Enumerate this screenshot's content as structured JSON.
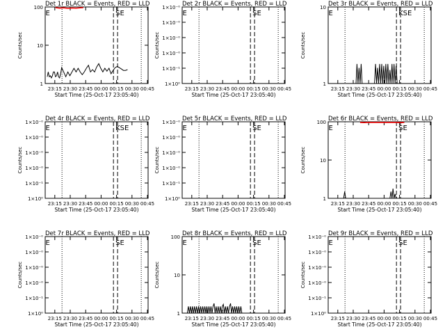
{
  "chart_data": {
    "type": "line",
    "xlabel": "Start Time (25-Oct-17 23:05:40)",
    "ylabel": "Counts/sec",
    "x_ticks": [
      "23:15",
      "23:30",
      "23:45",
      "00:00",
      "00:15",
      "00:30",
      "00:45"
    ],
    "dotted_lines": [
      "23:22",
      "00:39"
    ],
    "dashed_lines": [
      "00:12",
      "00:16"
    ],
    "panels": [
      {
        "title": "Det 1r BLACK = Events, RED = LLD",
        "ylim": [
          1,
          100
        ],
        "y_tick_labels": [
          "1",
          "10",
          "100"
        ],
        "markers": [
          {
            "text": "E",
            "at": "23:06"
          },
          {
            "text": "SE",
            "at": "00:14"
          }
        ],
        "events": [
          [
            2,
            1.5
          ],
          [
            3,
            2
          ],
          [
            4,
            1.5
          ],
          [
            5,
            1.6
          ],
          [
            6,
            1.4
          ],
          [
            7,
            1.6
          ],
          [
            8,
            2
          ],
          [
            9,
            2
          ],
          [
            10,
            1.5
          ],
          [
            11,
            1.6
          ],
          [
            12,
            2
          ],
          [
            13,
            1.5
          ],
          [
            14,
            1.4
          ],
          [
            15,
            1.8
          ],
          [
            16,
            2.6
          ],
          [
            18,
            2
          ],
          [
            20,
            1.5
          ],
          [
            22,
            2
          ],
          [
            24,
            1.6
          ],
          [
            26,
            2
          ],
          [
            28,
            2.5
          ],
          [
            30,
            2
          ],
          [
            32,
            2.5
          ],
          [
            34,
            2
          ],
          [
            36,
            1.7
          ],
          [
            38,
            2
          ],
          [
            40,
            2.5
          ],
          [
            42,
            3
          ],
          [
            44,
            2
          ],
          [
            46,
            2.3
          ],
          [
            48,
            2
          ],
          [
            50,
            2.7
          ],
          [
            52,
            3.3
          ],
          [
            54,
            2.5
          ],
          [
            56,
            2
          ],
          [
            58,
            2.5
          ],
          [
            60,
            2.1
          ],
          [
            62,
            2.5
          ],
          [
            64,
            1.8
          ],
          [
            66,
            2.2
          ],
          [
            68,
            2.6
          ],
          [
            70,
            2.8
          ],
          [
            72,
            2.6
          ],
          [
            74,
            2.4
          ],
          [
            76,
            2.2
          ],
          [
            78,
            2.2
          ],
          [
            80,
            2.3
          ]
        ],
        "lld": [
          [
            10,
            96
          ],
          [
            14,
            93
          ],
          [
            18,
            95
          ],
          [
            22,
            92
          ],
          [
            26,
            94
          ],
          [
            30,
            93
          ],
          [
            34,
            95
          ],
          [
            37,
            96
          ]
        ]
      },
      {
        "title": "Det 2r BLACK = Events, RED = LLD",
        "ylim": [
          1,
          1.000001
        ],
        "y_tick_labels": [
          "1×10⁰",
          "1×10⁻¹",
          "1×10⁻⁰",
          "1×10⁻⁰",
          "1×10⁻⁰",
          "1×10⁻⁰"
        ],
        "markers": [
          {
            "text": "E",
            "at": "23:06"
          },
          {
            "text": "SE",
            "at": "00:14"
          }
        ],
        "events": [],
        "lld": []
      },
      {
        "title": "Det 3r BLACK = Events, RED = LLD",
        "ylim": [
          1,
          10
        ],
        "y_tick_labels": [
          "1",
          "10"
        ],
        "markers": [
          {
            "text": "E",
            "at": "23:06"
          },
          {
            "text": "KSE",
            "at": "00:14"
          }
        ],
        "events": [
          [
            27,
            1
          ],
          [
            28,
            1.8
          ],
          [
            29,
            1
          ],
          [
            30,
            1.6
          ],
          [
            31,
            1
          ],
          [
            32,
            1.8
          ],
          [
            33,
            1
          ],
          [
            45,
            1
          ],
          [
            46,
            1.8
          ],
          [
            47,
            1
          ],
          [
            48,
            1.6
          ],
          [
            49,
            1
          ],
          [
            50,
            1.8
          ],
          [
            51,
            1
          ],
          [
            52,
            1.8
          ],
          [
            53,
            1
          ],
          [
            54,
            1.7
          ],
          [
            55,
            1
          ],
          [
            56,
            1.8
          ],
          [
            57,
            1
          ],
          [
            58,
            1.8
          ],
          [
            59,
            1
          ],
          [
            60,
            1.5
          ],
          [
            61,
            1
          ],
          [
            62,
            1.8
          ],
          [
            63,
            1
          ],
          [
            64,
            1.8
          ],
          [
            65,
            1
          ],
          [
            66,
            1.7
          ],
          [
            67,
            1
          ]
        ],
        "lld": []
      },
      {
        "title": "Det 4r BLACK = Events, RED = LLD",
        "ylim": [
          1,
          1.000001
        ],
        "y_tick_labels": [
          "1×10⁰",
          "1×10⁻¹",
          "1×10⁻⁰",
          "1×10⁻⁰",
          "1×10⁻⁰",
          "1×10⁻⁰"
        ],
        "markers": [
          {
            "text": "E",
            "at": "23:06"
          },
          {
            "text": "KSE",
            "at": "00:14"
          }
        ],
        "events": [],
        "lld": []
      },
      {
        "title": "Det 5r BLACK = Events, RED = LLD",
        "ylim": [
          1,
          1.000001
        ],
        "y_tick_labels": [
          "1×10⁰",
          "1×10⁻¹",
          "1×10⁻⁰",
          "1×10⁻⁰",
          "1×10⁻⁰",
          "1×10⁻⁰"
        ],
        "markers": [
          {
            "text": "E",
            "at": "23:06"
          },
          {
            "text": "SE",
            "at": "00:14"
          }
        ],
        "events": [],
        "lld": []
      },
      {
        "title": "Det 6r BLACK = Events, RED = LLD",
        "ylim": [
          1,
          100
        ],
        "y_tick_labels": [
          "1",
          "10",
          "100"
        ],
        "markers": [
          {
            "text": "E",
            "at": "23:06"
          },
          {
            "text": "SE",
            "at": "00:14"
          }
        ],
        "events": [
          [
            15,
            1
          ],
          [
            16,
            1.5
          ],
          [
            17,
            1
          ],
          [
            60,
            1
          ],
          [
            61,
            1.5
          ],
          [
            62,
            1
          ],
          [
            63,
            1.8
          ],
          [
            64,
            1
          ],
          [
            65,
            1.3
          ],
          [
            66,
            1
          ]
        ],
        "lld": [
          [
            31,
            96
          ],
          [
            35,
            95
          ],
          [
            38,
            96
          ],
          [
            66,
            96
          ],
          [
            70,
            95
          ],
          [
            74,
            96
          ]
        ]
      },
      {
        "title": "Det 7r BLACK = Events, RED = LLD",
        "ylim": [
          1,
          1.000001
        ],
        "y_tick_labels": [
          "1×10⁰",
          "1×10⁻¹",
          "1×10⁻⁰",
          "1×10⁻⁰",
          "1×10⁻⁰",
          "1×10⁻⁰"
        ],
        "markers": [
          {
            "text": "E",
            "at": "23:06"
          },
          {
            "text": "SE",
            "at": "00:14"
          }
        ],
        "events": [],
        "lld": []
      },
      {
        "title": "Det 8r BLACK = Events, RED = LLD",
        "ylim": [
          1,
          100
        ],
        "y_tick_labels": [
          "1",
          "10",
          "100"
        ],
        "markers": [
          {
            "text": "E",
            "at": "23:06"
          },
          {
            "text": "SE",
            "at": "00:14"
          }
        ],
        "events": [
          [
            5,
            1
          ],
          [
            6,
            1.5
          ],
          [
            7,
            1
          ],
          [
            8,
            1.5
          ],
          [
            9,
            1
          ],
          [
            10,
            1.5
          ],
          [
            11,
            1
          ],
          [
            12,
            1.5
          ],
          [
            13,
            1
          ],
          [
            14,
            1.5
          ],
          [
            15,
            1
          ],
          [
            16,
            1.5
          ],
          [
            17,
            1
          ],
          [
            18,
            1.5
          ],
          [
            19,
            1
          ],
          [
            20,
            1.5
          ],
          [
            21,
            1
          ],
          [
            22,
            1.5
          ],
          [
            23,
            1
          ],
          [
            24,
            1.5
          ],
          [
            25,
            1
          ],
          [
            26,
            1.5
          ],
          [
            27,
            1
          ],
          [
            28,
            1.5
          ],
          [
            29,
            1
          ],
          [
            30,
            1.5
          ],
          [
            31,
            1.8
          ],
          [
            32,
            1
          ],
          [
            33,
            1.5
          ],
          [
            34,
            1
          ],
          [
            35,
            1.5
          ],
          [
            36,
            1
          ],
          [
            37,
            1.5
          ],
          [
            38,
            1
          ],
          [
            39,
            1.5
          ],
          [
            40,
            1.7
          ],
          [
            41,
            1
          ],
          [
            42,
            1.5
          ],
          [
            43,
            1
          ],
          [
            44,
            1.5
          ],
          [
            45,
            1
          ],
          [
            46,
            1.5
          ],
          [
            47,
            1.8
          ],
          [
            48,
            1
          ],
          [
            49,
            1.5
          ],
          [
            50,
            1
          ],
          [
            51,
            1.5
          ],
          [
            52,
            1
          ],
          [
            53,
            1.5
          ],
          [
            54,
            1
          ],
          [
            55,
            1.5
          ],
          [
            56,
            1
          ],
          [
            57,
            1.5
          ],
          [
            58,
            1
          ]
        ],
        "lld": []
      },
      {
        "title": "Det 9r BLACK = Events, RED = LLD",
        "ylim": [
          1,
          1.000001
        ],
        "y_tick_labels": [
          "1×10⁰",
          "1×10⁻¹",
          "1×10⁻⁰",
          "1×10⁻⁰",
          "1×10⁻⁰",
          "1×10⁻⁰"
        ],
        "markers": [
          {
            "text": "E",
            "at": "23:06"
          },
          {
            "text": "SE",
            "at": "00:14"
          }
        ],
        "events": [],
        "lld": []
      }
    ]
  },
  "colors": {
    "events": "#000000",
    "lld": "#ff0000",
    "background": "#ffffff"
  }
}
